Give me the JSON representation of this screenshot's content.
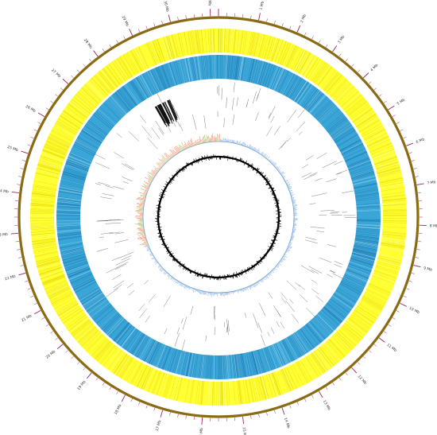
{
  "genome": {
    "length_mb": 31.2,
    "labeled_ticks_mb": [
      1,
      2,
      3,
      4,
      5,
      6,
      7,
      8,
      9,
      10,
      11,
      12,
      13,
      14,
      15,
      16,
      17,
      18,
      19,
      20,
      21,
      22,
      23,
      24,
      25,
      26,
      27,
      28,
      29,
      30,
      31
    ],
    "tick_label_suffix": " Mb",
    "minor_tick_step_mb": 0.2
  },
  "colors": {
    "backbone": "#8b6a14",
    "ticks": "#a0226a",
    "forward_cds_track": "#ffff33",
    "forward_cds_lines": "#e2d000",
    "reverse_cds_track": "#3aa6d8",
    "reverse_cds_lines": "#1b6fa8",
    "feature_marks": "#555555",
    "gc_skew_positive": "#f07850",
    "gc_skew_negative": "#6fa3d8",
    "gc_skew_highlight": "#8bc34a",
    "gc_content": "#000000"
  },
  "tracks": [
    {
      "name": "forward-cds-track",
      "color_key": "forward_cds_track"
    },
    {
      "name": "reverse-cds-track",
      "color_key": "reverse_cds_track"
    },
    {
      "name": "feature-track",
      "color_key": "feature_marks"
    },
    {
      "name": "gc-skew-track",
      "color_key": "gc_skew_positive"
    },
    {
      "name": "gc-content-track",
      "color_key": "gc_content"
    }
  ]
}
